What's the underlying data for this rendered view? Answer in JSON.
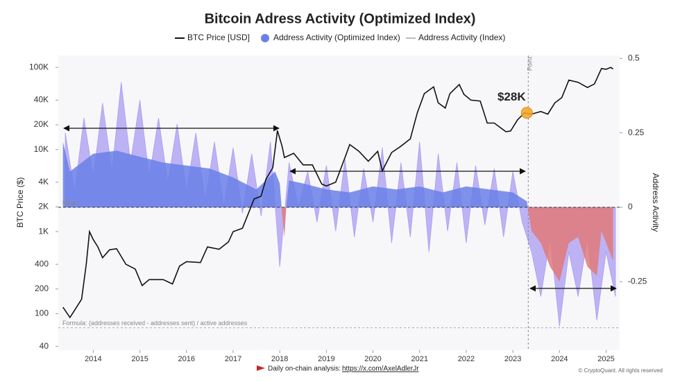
{
  "chart_data": {
    "type": "line",
    "title": "Bitcoin Adress Activity (Optimized Index)",
    "ylabel": "BTC Price ($)",
    "y2label": "Address Activity",
    "yscale": "log",
    "xlim": [
      2013.25,
      2025.29
    ],
    "xticks": [
      2014,
      2015,
      2016,
      2017,
      2018,
      2019,
      2020,
      2021,
      2022,
      2023,
      2024,
      2025
    ],
    "ylim": [
      36,
      140000
    ],
    "yticks": [
      {
        "value": 100000,
        "label": "100K"
      },
      {
        "value": 40000,
        "label": "40K"
      },
      {
        "value": 20000,
        "label": "20K"
      },
      {
        "value": 10000,
        "label": "10K"
      },
      {
        "value": 4000,
        "label": "4K"
      },
      {
        "value": 2000,
        "label": "2K"
      },
      {
        "value": 1000,
        "label": "1K"
      },
      400,
      200,
      100,
      40
    ],
    "y2lim": [
      -0.48,
      0.51
    ],
    "y2ticks": [
      0.5,
      0.25,
      0,
      -0.25
    ],
    "series": [
      {
        "name": "Address Activity (Index)",
        "type": "area",
        "axis": "y2",
        "color": "#a99cf2",
        "x": [
          2013.4,
          2013.6,
          2013.8,
          2014.0,
          2014.2,
          2014.4,
          2014.6,
          2014.8,
          2015.0,
          2015.2,
          2015.4,
          2015.6,
          2015.8,
          2016.0,
          2016.2,
          2016.4,
          2016.6,
          2016.8,
          2017.0,
          2017.2,
          2017.4,
          2017.6,
          2017.8,
          2018.0,
          2018.2,
          2018.4,
          2018.6,
          2018.8,
          2019.0,
          2019.2,
          2019.4,
          2019.6,
          2019.8,
          2020.0,
          2020.2,
          2020.4,
          2020.6,
          2020.8,
          2021.0,
          2021.2,
          2021.4,
          2021.6,
          2021.8,
          2022.0,
          2022.2,
          2022.4,
          2022.6,
          2022.8,
          2023.0,
          2023.2,
          2023.4,
          2023.6,
          2023.8,
          2024.0,
          2024.2,
          2024.4,
          2024.6,
          2024.8,
          2025.0,
          2025.2
        ],
        "values": [
          0.25,
          0.05,
          0.3,
          0.1,
          0.35,
          0.12,
          0.42,
          0.15,
          0.36,
          0.1,
          0.3,
          0.08,
          0.28,
          0.05,
          0.25,
          0.02,
          0.22,
          0.0,
          0.2,
          -0.02,
          0.18,
          -0.03,
          0.22,
          -0.2,
          0.15,
          0.0,
          0.12,
          -0.05,
          0.14,
          -0.08,
          0.16,
          -0.1,
          0.13,
          -0.05,
          0.2,
          -0.12,
          0.15,
          -0.1,
          0.22,
          -0.15,
          0.18,
          -0.08,
          0.15,
          -0.12,
          0.14,
          -0.06,
          0.13,
          -0.1,
          0.12,
          -0.05,
          -0.15,
          -0.3,
          -0.1,
          -0.4,
          -0.15,
          -0.3,
          -0.1,
          -0.38,
          -0.15,
          -0.3
        ]
      },
      {
        "name": "Address Activity (Optimized Index)",
        "type": "area",
        "axis": "y2",
        "color": "#6a7fe8",
        "negative_color": "#e07a7a",
        "x": [
          2013.35,
          2013.5,
          2014.0,
          2014.5,
          2015.0,
          2015.5,
          2016.0,
          2016.5,
          2017.0,
          2017.5,
          2017.9,
          2018.0,
          2018.05,
          2018.1,
          2018.15,
          2018.2,
          2018.5,
          2019.0,
          2019.5,
          2020.0,
          2020.5,
          2021.0,
          2021.5,
          2022.0,
          2022.5,
          2023.0,
          2023.3,
          2023.4,
          2023.6,
          2023.8,
          2024.0,
          2024.2,
          2024.4,
          2024.6,
          2024.8,
          2024.9,
          2025.0,
          2025.15
        ],
        "values": [
          0.22,
          0.12,
          0.18,
          0.19,
          0.17,
          0.15,
          0.14,
          0.13,
          0.1,
          0.06,
          0.12,
          0.08,
          -0.02,
          -0.1,
          0.02,
          0.09,
          0.08,
          0.06,
          0.05,
          0.07,
          0.06,
          0.07,
          0.05,
          0.07,
          0.06,
          0.05,
          0.02,
          -0.08,
          -0.12,
          -0.2,
          -0.25,
          -0.12,
          -0.1,
          -0.2,
          -0.23,
          -0.08,
          -0.12,
          -0.18
        ]
      },
      {
        "name": "BTC Price [USD]",
        "type": "line",
        "axis": "y",
        "color": "#111111",
        "x": [
          2013.35,
          2013.5,
          2013.6,
          2013.75,
          2013.85,
          2013.92,
          2014.0,
          2014.1,
          2014.2,
          2014.35,
          2014.5,
          2014.7,
          2014.9,
          2015.05,
          2015.2,
          2015.5,
          2015.7,
          2015.85,
          2016.0,
          2016.3,
          2016.45,
          2016.7,
          2016.9,
          2017.0,
          2017.2,
          2017.35,
          2017.45,
          2017.6,
          2017.7,
          2017.85,
          2017.95,
          2018.05,
          2018.1,
          2018.3,
          2018.5,
          2018.7,
          2018.9,
          2019.0,
          2019.2,
          2019.4,
          2019.5,
          2019.7,
          2019.9,
          2020.1,
          2020.2,
          2020.4,
          2020.6,
          2020.8,
          2020.95,
          2021.1,
          2021.3,
          2021.4,
          2021.55,
          2021.65,
          2021.85,
          2021.95,
          2022.1,
          2022.3,
          2022.45,
          2022.6,
          2022.85,
          2022.95,
          2023.1,
          2023.25,
          2023.4,
          2023.6,
          2023.75,
          2023.9,
          2024.05,
          2024.2,
          2024.4,
          2024.6,
          2024.75,
          2024.9,
          2025.0,
          2025.1,
          2025.15
        ],
        "values": [
          120,
          90,
          110,
          150,
          400,
          1000,
          800,
          650,
          480,
          600,
          620,
          400,
          350,
          220,
          260,
          260,
          230,
          380,
          430,
          420,
          650,
          610,
          750,
          1000,
          1100,
          1800,
          2500,
          2700,
          4300,
          6000,
          17000,
          11000,
          8000,
          9000,
          6500,
          6500,
          3800,
          3600,
          4000,
          8000,
          11500,
          9500,
          7200,
          9500,
          5500,
          9200,
          11000,
          13500,
          28000,
          48000,
          58000,
          37000,
          32000,
          48000,
          62000,
          47000,
          40000,
          39000,
          21000,
          21000,
          16500,
          16800,
          23000,
          28000,
          27000,
          29000,
          27000,
          37000,
          43000,
          70000,
          66000,
          57000,
          63000,
          97000,
          95000,
          100000,
          96000
        ]
      }
    ],
    "mean_line": {
      "label": "Mean",
      "y2": 0
    },
    "formula_line": {
      "label": "Formula: (addresses received - addresses sent) / active addresses",
      "y2": -0.405
    },
    "point_line": {
      "label": "Point",
      "x": 2023.33
    },
    "annotation": {
      "text": "$28K",
      "x": 2023.3,
      "y": 28000
    },
    "footer": {
      "text": "Daily on-chain analysis:",
      "link": "https://x.com/AxelAdlerJr"
    },
    "copyright": "© CryptoQuant. All rights reserved"
  }
}
